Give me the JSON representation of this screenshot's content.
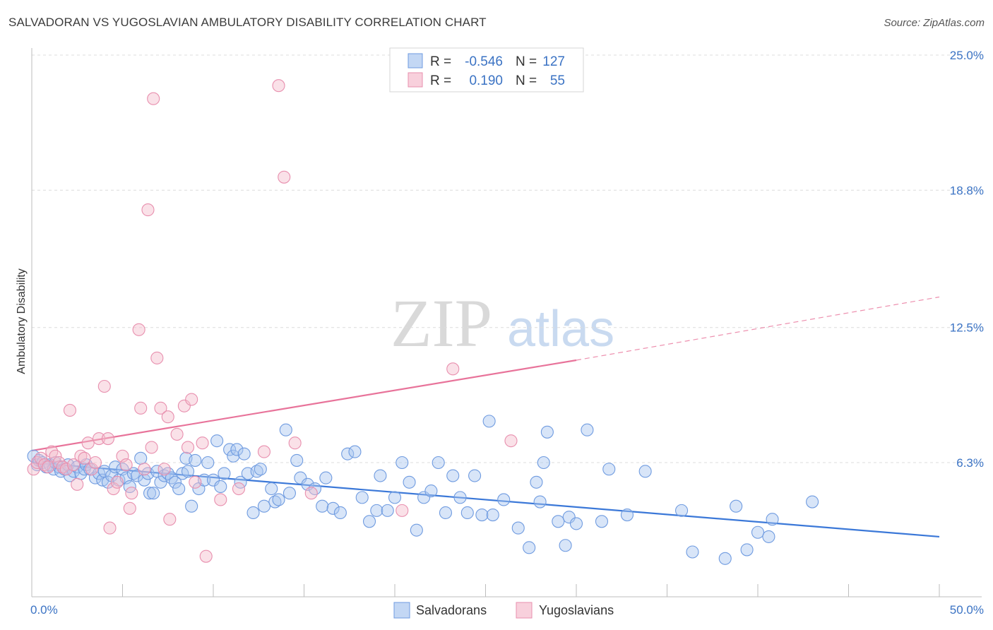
{
  "title": "SALVADORAN VS YUGOSLAVIAN AMBULATORY DISABILITY CORRELATION CHART",
  "source": "Source: ZipAtlas.com",
  "watermark": {
    "zip": "ZIP",
    "atlas": "atlas"
  },
  "legend": {
    "r_label": "R =",
    "n_label": "N =",
    "rows": [
      {
        "r": "-0.546",
        "n": "127"
      },
      {
        "r": "0.190",
        "n": "55"
      }
    ]
  },
  "colors": {
    "blue": "#3b78d8",
    "blue_fill": "#a9c6ef",
    "pink": "#e8739a",
    "pink_fill": "#f5bccd",
    "axis_text": "#3b73c4",
    "grid": "#dcdcdc"
  },
  "chart_data": {
    "type": "scatter",
    "title": "SALVADORAN VS YUGOSLAVIAN AMBULATORY DISABILITY CORRELATION CHART",
    "xlabel": "",
    "ylabel": "Ambulatory Disability",
    "xlim": [
      0,
      50
    ],
    "ylim": [
      0,
      26
    ],
    "x_tick_labels": [
      "0.0%",
      "50.0%"
    ],
    "y_ticks": [
      6.3,
      12.5,
      18.8,
      25.0
    ],
    "y_tick_labels": [
      "6.3%",
      "12.5%",
      "18.8%",
      "25.0%"
    ],
    "grid": true,
    "legend_position": "bottom",
    "series": [
      {
        "name": "Salvadorans",
        "color": "#3b78d8",
        "r": -0.546,
        "n": 127,
        "trend": {
          "x": [
            0,
            50
          ],
          "y": [
            6.3,
            2.9
          ]
        },
        "points": [
          [
            0.1,
            6.6
          ],
          [
            0.3,
            6.2
          ],
          [
            0.4,
            6.4
          ],
          [
            0.6,
            6.3
          ],
          [
            0.8,
            6.1
          ],
          [
            1.0,
            6.2
          ],
          [
            1.2,
            6.0
          ],
          [
            1.3,
            6.3
          ],
          [
            1.5,
            6.1
          ],
          [
            1.6,
            5.9
          ],
          [
            1.8,
            6.0
          ],
          [
            2.0,
            6.2
          ],
          [
            2.1,
            5.7
          ],
          [
            2.3,
            5.9
          ],
          [
            2.5,
            6.1
          ],
          [
            2.7,
            5.8
          ],
          [
            2.9,
            6.0
          ],
          [
            3.0,
            6.2
          ],
          [
            3.2,
            6.0
          ],
          [
            3.5,
            5.6
          ],
          [
            3.7,
            5.8
          ],
          [
            3.9,
            5.5
          ],
          [
            4.0,
            5.9
          ],
          [
            4.2,
            5.4
          ],
          [
            4.4,
            5.7
          ],
          [
            4.6,
            6.1
          ],
          [
            4.8,
            5.5
          ],
          [
            5.0,
            6.0
          ],
          [
            5.2,
            5.6
          ],
          [
            5.4,
            5.2
          ],
          [
            5.6,
            5.8
          ],
          [
            5.8,
            5.7
          ],
          [
            6.0,
            6.5
          ],
          [
            6.2,
            5.5
          ],
          [
            6.4,
            5.8
          ],
          [
            6.5,
            4.9
          ],
          [
            6.7,
            4.9
          ],
          [
            6.9,
            5.9
          ],
          [
            7.1,
            5.4
          ],
          [
            7.3,
            5.7
          ],
          [
            7.5,
            5.8
          ],
          [
            7.7,
            5.6
          ],
          [
            7.9,
            5.4
          ],
          [
            8.1,
            5.1
          ],
          [
            8.3,
            5.8
          ],
          [
            8.5,
            6.5
          ],
          [
            8.6,
            5.9
          ],
          [
            8.8,
            4.3
          ],
          [
            9.0,
            6.4
          ],
          [
            9.2,
            5.1
          ],
          [
            9.5,
            5.5
          ],
          [
            9.7,
            6.3
          ],
          [
            10.0,
            5.5
          ],
          [
            10.2,
            7.3
          ],
          [
            10.4,
            5.2
          ],
          [
            10.6,
            5.8
          ],
          [
            10.9,
            6.9
          ],
          [
            11.1,
            6.6
          ],
          [
            11.3,
            6.9
          ],
          [
            11.5,
            5.4
          ],
          [
            11.7,
            6.7
          ],
          [
            11.9,
            5.8
          ],
          [
            12.2,
            4.0
          ],
          [
            12.4,
            5.9
          ],
          [
            12.6,
            6.0
          ],
          [
            12.8,
            4.3
          ],
          [
            13.2,
            5.1
          ],
          [
            13.4,
            4.5
          ],
          [
            13.6,
            4.6
          ],
          [
            14.0,
            7.8
          ],
          [
            14.2,
            4.9
          ],
          [
            14.6,
            6.4
          ],
          [
            14.8,
            5.6
          ],
          [
            15.2,
            5.3
          ],
          [
            15.6,
            5.1
          ],
          [
            16.0,
            4.3
          ],
          [
            16.2,
            5.6
          ],
          [
            16.6,
            4.2
          ],
          [
            17.0,
            4.0
          ],
          [
            17.4,
            6.7
          ],
          [
            17.8,
            6.8
          ],
          [
            18.2,
            4.7
          ],
          [
            18.6,
            3.6
          ],
          [
            19.0,
            4.1
          ],
          [
            19.2,
            5.7
          ],
          [
            19.6,
            4.1
          ],
          [
            20.0,
            4.7
          ],
          [
            20.4,
            6.3
          ],
          [
            20.8,
            5.4
          ],
          [
            21.2,
            3.2
          ],
          [
            21.6,
            4.7
          ],
          [
            22.0,
            5.0
          ],
          [
            22.4,
            6.3
          ],
          [
            22.8,
            4.0
          ],
          [
            23.2,
            5.7
          ],
          [
            23.6,
            4.7
          ],
          [
            24.0,
            4.0
          ],
          [
            24.4,
            5.7
          ],
          [
            24.8,
            3.9
          ],
          [
            25.2,
            8.2
          ],
          [
            25.4,
            3.9
          ],
          [
            26.0,
            4.6
          ],
          [
            26.8,
            3.3
          ],
          [
            27.4,
            2.4
          ],
          [
            27.8,
            5.4
          ],
          [
            28.0,
            4.5
          ],
          [
            28.2,
            6.3
          ],
          [
            28.4,
            7.7
          ],
          [
            29.0,
            3.6
          ],
          [
            29.4,
            2.5
          ],
          [
            29.6,
            3.8
          ],
          [
            30.0,
            3.5
          ],
          [
            30.6,
            7.8
          ],
          [
            31.4,
            3.6
          ],
          [
            31.8,
            6.0
          ],
          [
            32.8,
            3.9
          ],
          [
            33.8,
            5.9
          ],
          [
            35.8,
            4.1
          ],
          [
            36.4,
            2.2
          ],
          [
            38.2,
            1.9
          ],
          [
            38.8,
            4.3
          ],
          [
            39.4,
            2.3
          ],
          [
            40.0,
            3.1
          ],
          [
            40.6,
            2.9
          ],
          [
            40.8,
            3.7
          ],
          [
            43.0,
            4.5
          ]
        ]
      },
      {
        "name": "Yugoslavians",
        "color": "#e8739a",
        "r": 0.19,
        "n": 55,
        "trend": {
          "x": [
            0,
            30
          ],
          "y": [
            6.85,
            11.0
          ]
        },
        "trend_dashed": {
          "x": [
            30,
            50
          ],
          "y": [
            11.0,
            13.9
          ]
        },
        "points": [
          [
            0.1,
            6.0
          ],
          [
            0.3,
            6.3
          ],
          [
            0.5,
            6.5
          ],
          [
            0.7,
            6.2
          ],
          [
            0.9,
            6.1
          ],
          [
            1.1,
            6.8
          ],
          [
            1.3,
            6.6
          ],
          [
            1.5,
            6.3
          ],
          [
            1.7,
            6.1
          ],
          [
            1.9,
            6.0
          ],
          [
            2.1,
            8.7
          ],
          [
            2.3,
            6.2
          ],
          [
            2.5,
            5.3
          ],
          [
            2.7,
            6.6
          ],
          [
            2.9,
            6.5
          ],
          [
            3.1,
            7.2
          ],
          [
            3.3,
            6.0
          ],
          [
            3.5,
            6.3
          ],
          [
            3.7,
            7.4
          ],
          [
            4.0,
            9.8
          ],
          [
            4.2,
            7.4
          ],
          [
            4.3,
            3.3
          ],
          [
            4.5,
            5.1
          ],
          [
            4.7,
            5.4
          ],
          [
            5.0,
            6.6
          ],
          [
            5.2,
            6.2
          ],
          [
            5.4,
            4.2
          ],
          [
            5.5,
            4.9
          ],
          [
            5.9,
            12.4
          ],
          [
            6.0,
            8.8
          ],
          [
            6.2,
            6.0
          ],
          [
            6.4,
            17.9
          ],
          [
            6.6,
            7.0
          ],
          [
            6.7,
            23.0
          ],
          [
            6.9,
            11.1
          ],
          [
            7.1,
            8.8
          ],
          [
            7.3,
            6.0
          ],
          [
            7.5,
            8.4
          ],
          [
            7.6,
            3.7
          ],
          [
            8.0,
            7.6
          ],
          [
            8.4,
            8.9
          ],
          [
            8.6,
            7.0
          ],
          [
            8.8,
            9.2
          ],
          [
            9.0,
            5.4
          ],
          [
            9.4,
            7.2
          ],
          [
            9.6,
            2.0
          ],
          [
            10.4,
            4.6
          ],
          [
            11.4,
            5.1
          ],
          [
            12.8,
            6.8
          ],
          [
            13.6,
            23.6
          ],
          [
            13.9,
            19.4
          ],
          [
            14.5,
            7.2
          ],
          [
            15.4,
            4.9
          ],
          [
            20.4,
            4.1
          ],
          [
            23.2,
            10.6
          ],
          [
            26.4,
            7.3
          ]
        ]
      }
    ]
  },
  "bottom_legend": [
    {
      "label": "Salvadorans"
    },
    {
      "label": "Yugoslavians"
    }
  ]
}
